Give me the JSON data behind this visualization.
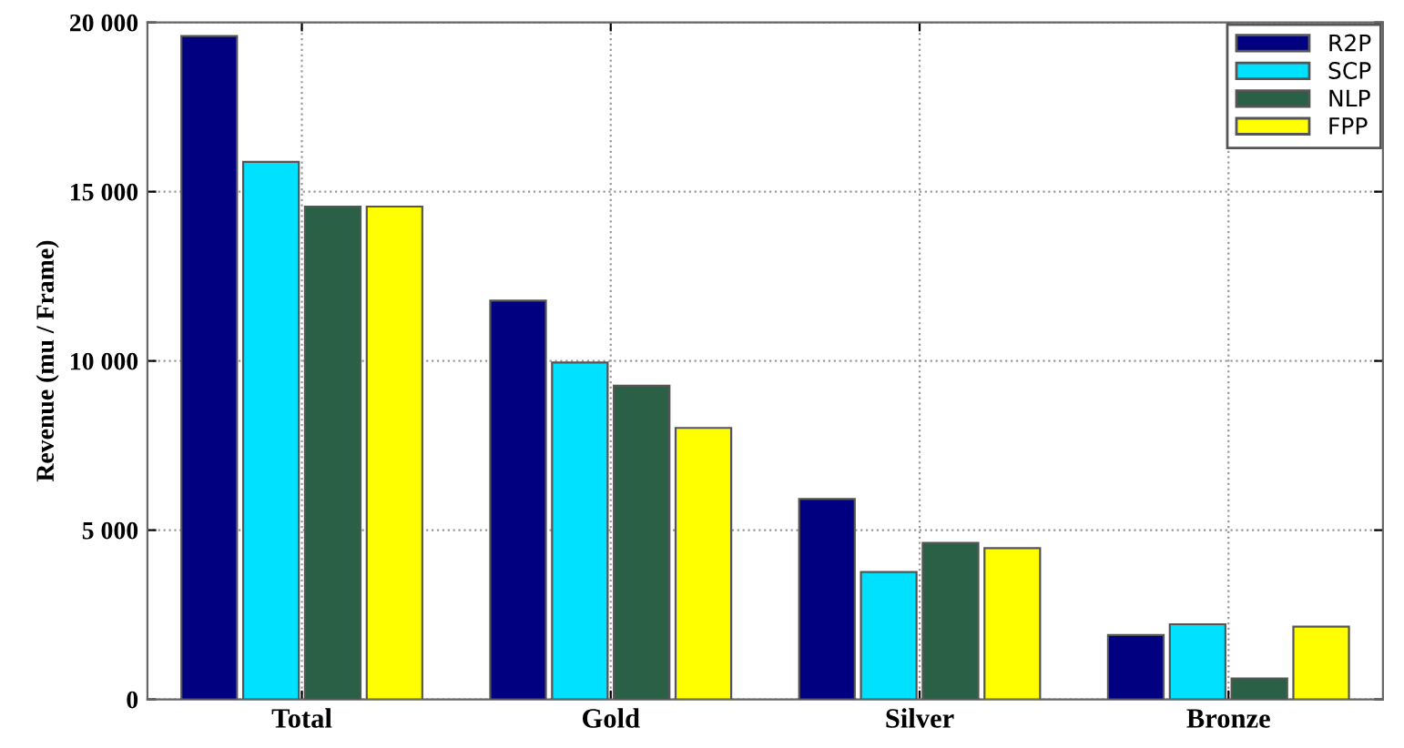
{
  "chart_data": {
    "type": "bar",
    "ylabel": "Revenue (mu / Frame)",
    "categories": [
      "Total",
      "Gold",
      "Silver",
      "Bronze"
    ],
    "series": [
      {
        "name": "R2P",
        "color": "#000080",
        "values": [
          19600,
          11780,
          5920,
          1900
        ]
      },
      {
        "name": "SCP",
        "color": "#00e0ff",
        "values": [
          15880,
          9950,
          3760,
          2220
        ]
      },
      {
        "name": "NLP",
        "color": "#2a6046",
        "values": [
          14560,
          9270,
          4620,
          620
        ]
      },
      {
        "name": "FPP",
        "color": "#ffff00",
        "values": [
          14560,
          8020,
          4470,
          2150
        ]
      }
    ],
    "ylim": [
      0,
      20000
    ],
    "yticks": [
      {
        "value": 0,
        "label": "0"
      },
      {
        "value": 5000,
        "label": "5 000"
      },
      {
        "value": 10000,
        "label": "10 000"
      },
      {
        "value": 15000,
        "label": "15 000"
      },
      {
        "value": 20000,
        "label": "20 000"
      }
    ],
    "grid": true,
    "legend": "top right"
  }
}
